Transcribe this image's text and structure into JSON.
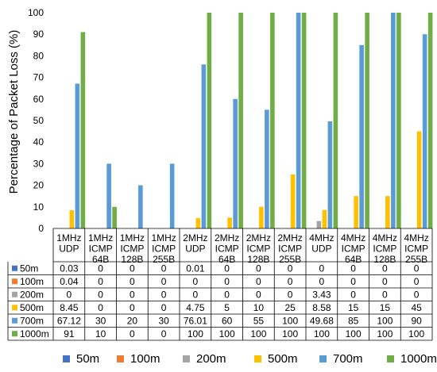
{
  "chart_data": {
    "type": "bar",
    "ylabel": "Percentage of Packet Loss (%)",
    "ylim": [
      0,
      100
    ],
    "yticks": [
      0,
      10,
      20,
      30,
      40,
      50,
      60,
      70,
      80,
      90,
      100
    ],
    "grid": false,
    "legend_position": "bottom",
    "categories": [
      [
        "1MHz",
        "UDP"
      ],
      [
        "1MHz",
        "ICMP",
        "64B"
      ],
      [
        "1MHz",
        "ICMP",
        "128B"
      ],
      [
        "1MHz",
        "ICMP",
        "255B"
      ],
      [
        "2MHz",
        "UDP"
      ],
      [
        "2MHz",
        "ICMP",
        "64B"
      ],
      [
        "2MHz",
        "ICMP",
        "128B"
      ],
      [
        "2MHz",
        "ICMP",
        "255B"
      ],
      [
        "4MHz",
        "UDP"
      ],
      [
        "4MHz",
        "ICMP",
        "64B"
      ],
      [
        "4MHz",
        "ICMP",
        "128B"
      ],
      [
        "4MHz",
        "ICMP",
        "255B"
      ]
    ],
    "series": [
      {
        "name": "50m",
        "color": "#4472c4",
        "values": [
          0.03,
          0,
          0,
          0,
          0.01,
          0,
          0,
          0,
          0,
          0,
          0,
          0
        ]
      },
      {
        "name": "100m",
        "color": "#ed7d31",
        "values": [
          0.04,
          0,
          0,
          0,
          0,
          0,
          0,
          0,
          0,
          0,
          0,
          0
        ]
      },
      {
        "name": "200m",
        "color": "#a5a5a5",
        "values": [
          0,
          0,
          0,
          0,
          0,
          0,
          0,
          0,
          3.43,
          0,
          0,
          0
        ]
      },
      {
        "name": "500m",
        "color": "#ffc000",
        "values": [
          8.45,
          0,
          0,
          0,
          4.75,
          5,
          10,
          25,
          8.58,
          15,
          15,
          45
        ]
      },
      {
        "name": "700m",
        "color": "#5b9bd5",
        "values": [
          67.12,
          30,
          20,
          30,
          76.01,
          60,
          55,
          100,
          49.68,
          85,
          100,
          90
        ]
      },
      {
        "name": "1000m",
        "color": "#70ad47",
        "values": [
          91,
          10,
          0,
          0,
          100,
          100,
          100,
          100,
          100,
          100,
          100,
          100
        ]
      }
    ],
    "table_cells": [
      [
        "0.03",
        "0",
        "0",
        "0",
        "0.01",
        "0",
        "0",
        "0",
        "0",
        "0",
        "0",
        "0"
      ],
      [
        "0.04",
        "0",
        "0",
        "0",
        "0",
        "0",
        "0",
        "0",
        "0",
        "0",
        "0",
        "0"
      ],
      [
        "0",
        "0",
        "0",
        "0",
        "0",
        "0",
        "0",
        "0",
        "3.43",
        "0",
        "0",
        "0"
      ],
      [
        "8.45",
        "0",
        "0",
        "0",
        "4.75",
        "5",
        "10",
        "25",
        "8.58",
        "15",
        "15",
        "45"
      ],
      [
        "67.12",
        "30",
        "20",
        "30",
        "76.01",
        "60",
        "55",
        "100",
        "49.68",
        "85",
        "100",
        "90"
      ],
      [
        "91",
        "10",
        "0",
        "0",
        "100",
        "100",
        "100",
        "100",
        "100",
        "100",
        "100",
        "100"
      ]
    ]
  }
}
